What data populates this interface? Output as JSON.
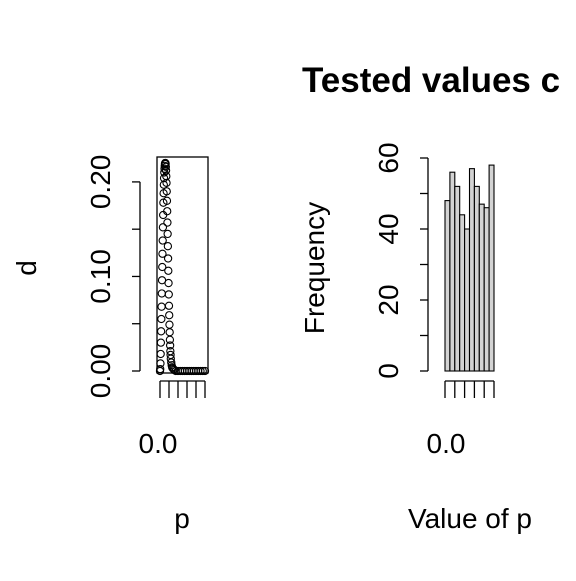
{
  "chart_data": [
    {
      "type": "scatter",
      "title": "",
      "xlabel": "p",
      "ylabel": "d",
      "x_tick_labels": [
        "0.0"
      ],
      "y_tick_labels": [
        "0.00",
        "0.10",
        "0.20"
      ],
      "xlim": [
        0,
        1
      ],
      "ylim": [
        0,
        0.22
      ],
      "points": [
        [
          0.0,
          0.0
        ],
        [
          0.005,
          0.002
        ],
        [
          0.01,
          0.008
        ],
        [
          0.015,
          0.018
        ],
        [
          0.02,
          0.03
        ],
        [
          0.025,
          0.042
        ],
        [
          0.03,
          0.055
        ],
        [
          0.035,
          0.068
        ],
        [
          0.04,
          0.082
        ],
        [
          0.045,
          0.096
        ],
        [
          0.05,
          0.11
        ],
        [
          0.055,
          0.124
        ],
        [
          0.06,
          0.138
        ],
        [
          0.065,
          0.152
        ],
        [
          0.07,
          0.165
        ],
        [
          0.075,
          0.178
        ],
        [
          0.08,
          0.188
        ],
        [
          0.085,
          0.197
        ],
        [
          0.09,
          0.204
        ],
        [
          0.095,
          0.21
        ],
        [
          0.1,
          0.214
        ],
        [
          0.105,
          0.217
        ],
        [
          0.11,
          0.219
        ],
        [
          0.115,
          0.22
        ],
        [
          0.12,
          0.22
        ],
        [
          0.125,
          0.219
        ],
        [
          0.13,
          0.216
        ],
        [
          0.135,
          0.212
        ],
        [
          0.14,
          0.206
        ],
        [
          0.145,
          0.199
        ],
        [
          0.15,
          0.19
        ],
        [
          0.155,
          0.18
        ],
        [
          0.16,
          0.169
        ],
        [
          0.165,
          0.157
        ],
        [
          0.17,
          0.145
        ],
        [
          0.175,
          0.132
        ],
        [
          0.18,
          0.119
        ],
        [
          0.185,
          0.106
        ],
        [
          0.19,
          0.093
        ],
        [
          0.195,
          0.081
        ],
        [
          0.2,
          0.069
        ],
        [
          0.205,
          0.059
        ],
        [
          0.21,
          0.049
        ],
        [
          0.215,
          0.041
        ],
        [
          0.22,
          0.033
        ],
        [
          0.225,
          0.027
        ],
        [
          0.23,
          0.021
        ],
        [
          0.235,
          0.017
        ],
        [
          0.24,
          0.013
        ],
        [
          0.25,
          0.009
        ],
        [
          0.26,
          0.006
        ],
        [
          0.27,
          0.004
        ],
        [
          0.28,
          0.003
        ],
        [
          0.3,
          0.002
        ],
        [
          0.32,
          0.001
        ],
        [
          0.35,
          0.0
        ],
        [
          0.4,
          0.0
        ],
        [
          0.45,
          0.0
        ],
        [
          0.5,
          0.0
        ],
        [
          0.55,
          0.0
        ],
        [
          0.6,
          0.0
        ],
        [
          0.65,
          0.0
        ],
        [
          0.7,
          0.0
        ],
        [
          0.75,
          0.0
        ],
        [
          0.8,
          0.0
        ],
        [
          0.85,
          0.0
        ],
        [
          0.9,
          0.0
        ],
        [
          0.95,
          0.0
        ],
        [
          1.0,
          0.0
        ]
      ]
    },
    {
      "type": "bar",
      "title": "Tested values c",
      "xlabel": "Value of p",
      "ylabel": "Frequency",
      "x_tick_labels": [
        "0.0"
      ],
      "y_tick_labels": [
        "0",
        "20",
        "40",
        "60"
      ],
      "ylim": [
        0,
        60
      ],
      "values": [
        48,
        56,
        52,
        44,
        40,
        57,
        52,
        47,
        46,
        58
      ]
    }
  ]
}
